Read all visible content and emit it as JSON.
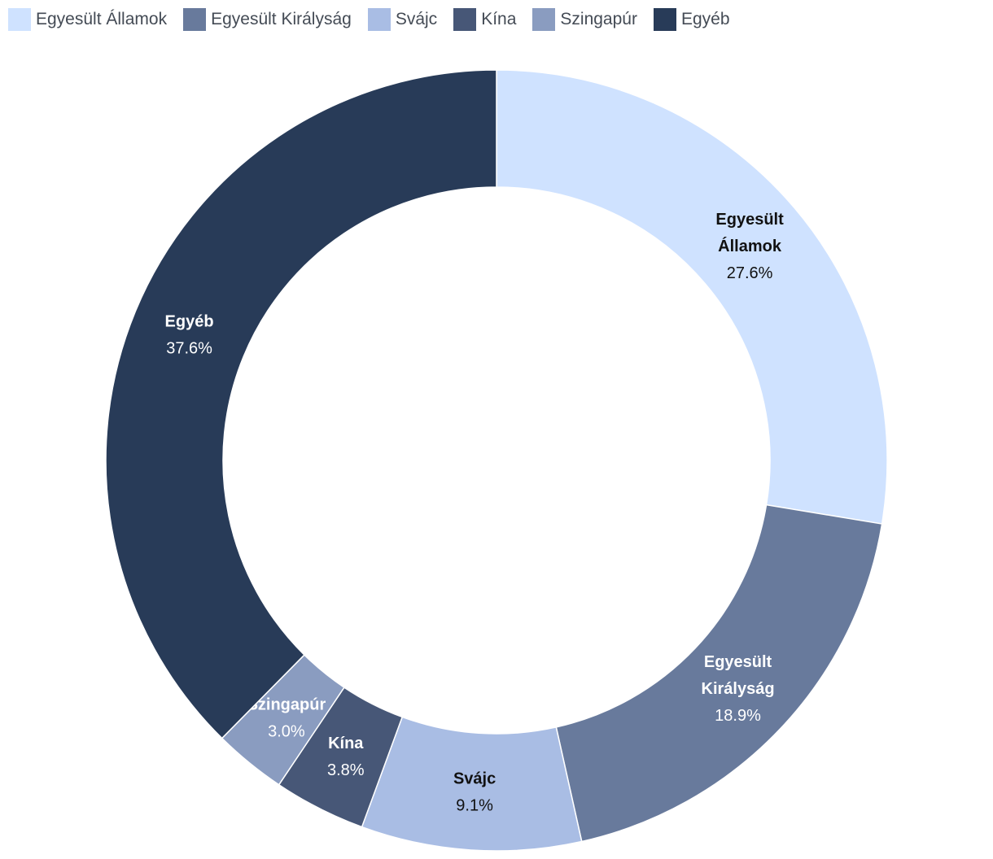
{
  "chart_data": {
    "type": "pie",
    "variant": "donut",
    "legend_position": "top-left",
    "slices": [
      {
        "name": "Egyesült Államok",
        "label_lines": [
          "Egyesült",
          "Államok"
        ],
        "value": 27.6,
        "value_label": "27.6%",
        "color": "#cfe2ff",
        "text_color": "#111111"
      },
      {
        "name": "Egyesült Királyság",
        "label_lines": [
          "Egyesült",
          "Királyság"
        ],
        "value": 18.9,
        "value_label": "18.9%",
        "color": "#687a9c",
        "text_color": "#ffffff"
      },
      {
        "name": "Svájc",
        "label_lines": [
          "Svájc"
        ],
        "value": 9.1,
        "value_label": "9.1%",
        "color": "#a9bde4",
        "text_color": "#111111"
      },
      {
        "name": "Kína",
        "label_lines": [
          "Kína"
        ],
        "value": 3.8,
        "value_label": "3.8%",
        "color": "#475777",
        "text_color": "#ffffff"
      },
      {
        "name": "Szingapúr",
        "label_lines": [
          "Szingapúr"
        ],
        "value": 3.0,
        "value_label": "3.0%",
        "color": "#8a9cc0",
        "text_color": "#ffffff"
      },
      {
        "name": "Egyéb",
        "label_lines": [
          "Egyéb"
        ],
        "value": 37.6,
        "value_label": "37.6%",
        "color": "#283b58",
        "text_color": "#ffffff"
      }
    ]
  }
}
